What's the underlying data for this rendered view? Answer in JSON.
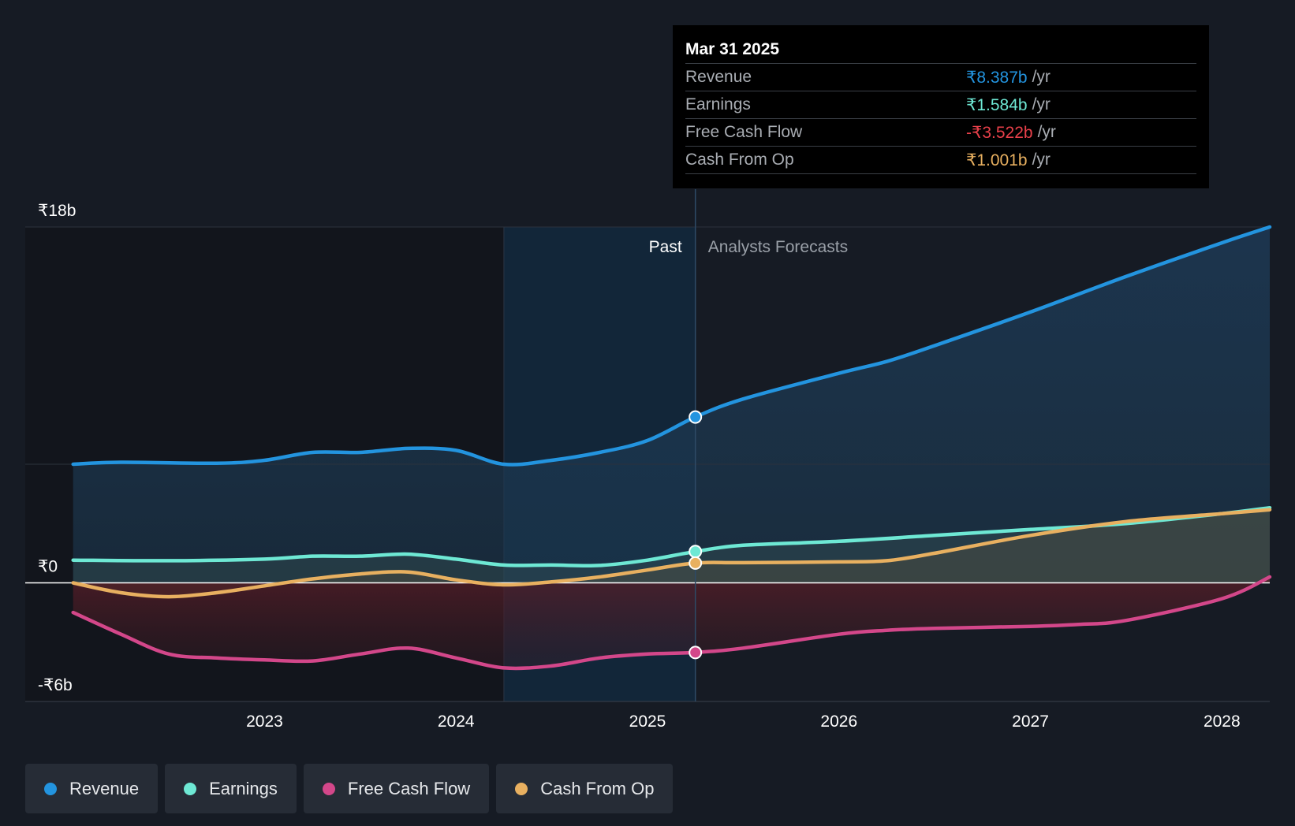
{
  "colors": {
    "revenue": "#2394df",
    "earnings": "#6ee8d4",
    "fcf": "#d3478a",
    "cfo": "#e8b060",
    "negative": "#e8404a"
  },
  "tooltip": {
    "date": "Mar 31 2025",
    "rows": [
      {
        "label": "Revenue",
        "value": "₹8.387b",
        "unit": "/yr"
      },
      {
        "label": "Earnings",
        "value": "₹1.584b",
        "unit": "/yr"
      },
      {
        "label": "Free Cash Flow",
        "value": "-₹3.522b",
        "unit": "/yr"
      },
      {
        "label": "Cash From Op",
        "value": "₹1.001b",
        "unit": "/yr"
      }
    ]
  },
  "legend": [
    "Revenue",
    "Earnings",
    "Free Cash Flow",
    "Cash From Op"
  ],
  "chart_data": {
    "type": "line",
    "title": "",
    "xlabel": "",
    "ylabel": "",
    "ylim": [
      -6,
      18
    ],
    "y_tick_labels": [
      {
        "value": 18,
        "label": "₹18b"
      },
      {
        "value": 0,
        "label": "₹0"
      },
      {
        "value": -6,
        "label": "-₹6b"
      }
    ],
    "x_tick_labels": [
      {
        "value": 2023.0,
        "label": "2023"
      },
      {
        "value": 2024.0,
        "label": "2024"
      },
      {
        "value": 2025.0,
        "label": "2025"
      },
      {
        "value": 2026.0,
        "label": "2026"
      },
      {
        "value": 2027.0,
        "label": "2027"
      },
      {
        "value": 2028.0,
        "label": "2028"
      }
    ],
    "xlim": [
      2021.75,
      2028.25
    ],
    "past_label": "Past",
    "forecast_label": "Analysts Forecasts",
    "highlight_start": 2024.25,
    "divider_x": 2025.25,
    "series": [
      {
        "name": "Revenue",
        "key": "revenue",
        "points": [
          [
            2022.0,
            6.0
          ],
          [
            2022.25,
            6.1
          ],
          [
            2022.75,
            6.05
          ],
          [
            2023.0,
            6.2
          ],
          [
            2023.25,
            6.6
          ],
          [
            2023.5,
            6.6
          ],
          [
            2023.75,
            6.8
          ],
          [
            2024.0,
            6.7
          ],
          [
            2024.25,
            6.0
          ],
          [
            2024.5,
            6.2
          ],
          [
            2024.75,
            6.6
          ],
          [
            2025.0,
            7.2
          ],
          [
            2025.25,
            8.387
          ],
          [
            2025.5,
            9.3
          ],
          [
            2026.0,
            10.6
          ],
          [
            2026.25,
            11.2
          ],
          [
            2026.5,
            12.0
          ],
          [
            2027.0,
            13.7
          ],
          [
            2027.5,
            15.5
          ],
          [
            2028.0,
            17.2
          ],
          [
            2028.25,
            18.0
          ]
        ]
      },
      {
        "name": "Earnings",
        "key": "earnings",
        "points": [
          [
            2022.0,
            1.15
          ],
          [
            2022.5,
            1.12
          ],
          [
            2023.0,
            1.2
          ],
          [
            2023.25,
            1.35
          ],
          [
            2023.5,
            1.35
          ],
          [
            2023.75,
            1.45
          ],
          [
            2024.0,
            1.2
          ],
          [
            2024.25,
            0.9
          ],
          [
            2024.5,
            0.9
          ],
          [
            2024.75,
            0.88
          ],
          [
            2025.0,
            1.15
          ],
          [
            2025.25,
            1.584
          ],
          [
            2025.5,
            1.9
          ],
          [
            2026.0,
            2.1
          ],
          [
            2026.5,
            2.4
          ],
          [
            2027.0,
            2.7
          ],
          [
            2027.5,
            3.0
          ],
          [
            2028.0,
            3.5
          ],
          [
            2028.25,
            3.8
          ]
        ]
      },
      {
        "name": "Free Cash Flow",
        "key": "fcf",
        "points": [
          [
            2022.0,
            -1.5
          ],
          [
            2022.25,
            -2.6
          ],
          [
            2022.5,
            -3.6
          ],
          [
            2022.75,
            -3.8
          ],
          [
            2023.0,
            -3.9
          ],
          [
            2023.25,
            -3.95
          ],
          [
            2023.5,
            -3.6
          ],
          [
            2023.75,
            -3.3
          ],
          [
            2024.0,
            -3.8
          ],
          [
            2024.25,
            -4.3
          ],
          [
            2024.5,
            -4.2
          ],
          [
            2024.75,
            -3.8
          ],
          [
            2025.0,
            -3.6
          ],
          [
            2025.25,
            -3.522
          ],
          [
            2025.5,
            -3.3
          ],
          [
            2026.0,
            -2.6
          ],
          [
            2026.25,
            -2.4
          ],
          [
            2026.5,
            -2.3
          ],
          [
            2027.0,
            -2.2
          ],
          [
            2027.25,
            -2.1
          ],
          [
            2027.5,
            -1.9
          ],
          [
            2028.0,
            -0.8
          ],
          [
            2028.25,
            0.3
          ]
        ]
      },
      {
        "name": "Cash From Op",
        "key": "cfo",
        "points": [
          [
            2022.0,
            0.0
          ],
          [
            2022.25,
            -0.5
          ],
          [
            2022.5,
            -0.7
          ],
          [
            2022.75,
            -0.5
          ],
          [
            2023.0,
            -0.15
          ],
          [
            2023.25,
            0.2
          ],
          [
            2023.5,
            0.45
          ],
          [
            2023.75,
            0.55
          ],
          [
            2024.0,
            0.15
          ],
          [
            2024.25,
            -0.1
          ],
          [
            2024.5,
            0.05
          ],
          [
            2024.75,
            0.3
          ],
          [
            2025.0,
            0.65
          ],
          [
            2025.25,
            1.001
          ],
          [
            2025.5,
            1.02
          ],
          [
            2026.0,
            1.06
          ],
          [
            2026.25,
            1.12
          ],
          [
            2026.5,
            1.5
          ],
          [
            2027.0,
            2.4
          ],
          [
            2027.5,
            3.1
          ],
          [
            2028.0,
            3.5
          ],
          [
            2028.25,
            3.7
          ]
        ]
      }
    ]
  }
}
